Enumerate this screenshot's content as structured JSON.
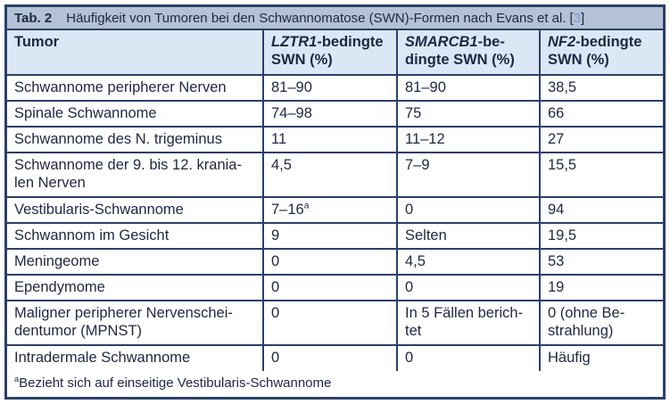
{
  "colors": {
    "border": "#2b4068",
    "text": "#1e2743",
    "caption_bg": "#b3c2d6",
    "header_bg": "#dce7f5",
    "citation_number": "#7d9cd0",
    "row_bg": "#ffffff"
  },
  "table": {
    "caption": {
      "label": "Tab. 2",
      "title": "Häufigkeit von Tumoren bei den Schwannomatose (SWN)-Formen nach Evans et al.",
      "citation_open": "[",
      "citation_number": "3",
      "citation_close": "]"
    },
    "header": {
      "col0": "Tumor",
      "col1": {
        "gene": "LZTR1",
        "line1_rest": "-bedingte",
        "line2": "SWN (%)"
      },
      "col2": {
        "gene": "SMARCB1",
        "line1_rest": "-be-",
        "line2": "dingte SWN (%)"
      },
      "col3": {
        "gene": "NF2",
        "line1_rest": "-bedingte",
        "line2": "SWN (%)"
      }
    },
    "rows": [
      {
        "tumor": "Schwannome peripherer Nerven",
        "values": [
          "81–90",
          "81–90",
          "38,5"
        ],
        "tall": false
      },
      {
        "tumor": "Spinale Schwannome",
        "values": [
          "74–98",
          "75",
          "66"
        ],
        "tall": false
      },
      {
        "tumor": "Schwannome des N. trigeminus",
        "values": [
          "11",
          "11–12",
          "27"
        ],
        "tall": false
      },
      {
        "tumor": "Schwannome der 9. bis 12. krania-\nlen Nerven",
        "values": [
          "4,5",
          "7–9",
          "15,5"
        ],
        "tall": true
      },
      {
        "tumor": "Vestibularis-Schwannome",
        "values": [
          {
            "text": "7–16",
            "sup": "a"
          },
          "0",
          "94"
        ],
        "tall": false
      },
      {
        "tumor": "Schwannom im Gesicht",
        "values": [
          "9",
          "Selten",
          "19,5"
        ],
        "tall": false
      },
      {
        "tumor": "Meningeome",
        "values": [
          "0",
          "4,5",
          "53"
        ],
        "tall": false
      },
      {
        "tumor": "Ependymome",
        "values": [
          "0",
          "0",
          "19"
        ],
        "tall": false
      },
      {
        "tumor": "Maligner peripherer Nervenschei-\ndentumor (MPNST)",
        "values": [
          "0",
          "In 5 Fällen berich-\ntet",
          "0 (ohne Be-\nstrahlung)"
        ],
        "tall": true
      },
      {
        "tumor": "Intradermale Schwannome",
        "values": [
          "0",
          "0",
          "Häufig"
        ],
        "tall": false
      }
    ],
    "footnote": {
      "marker": "a",
      "text": "Bezieht sich auf einseitige Vestibularis-Schwannome"
    }
  }
}
